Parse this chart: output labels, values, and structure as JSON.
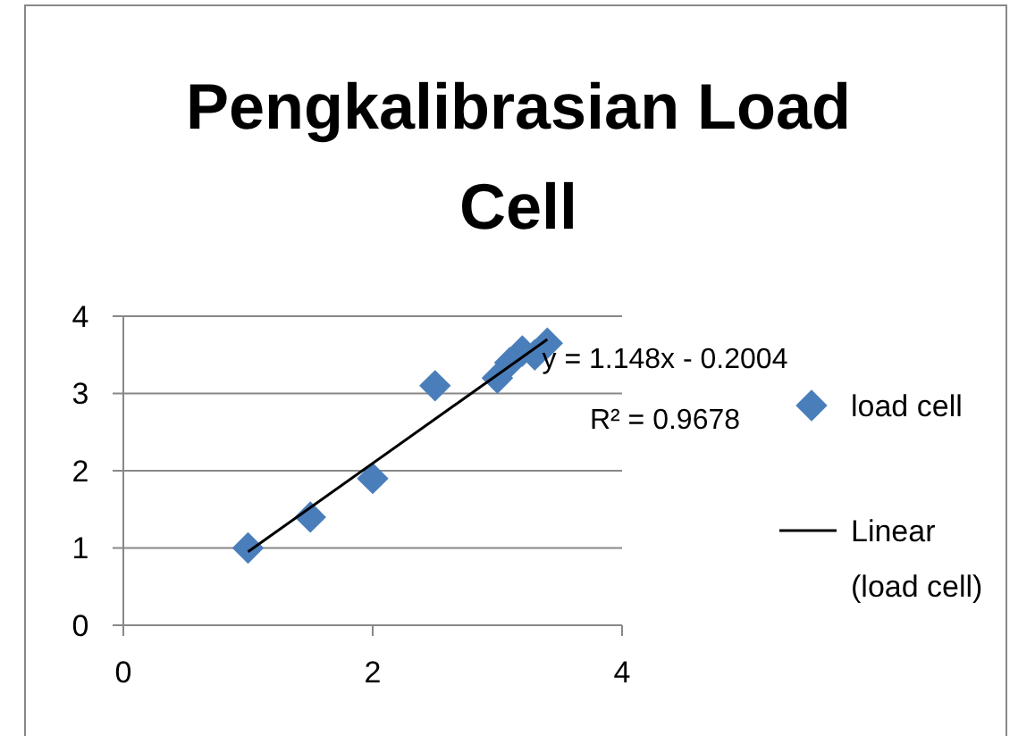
{
  "chart_data": {
    "type": "scatter",
    "title": "Pengkalibrasian Load Cell",
    "xlim": [
      0,
      4
    ],
    "xticks": [
      0,
      2,
      4
    ],
    "ylim": [
      0,
      4
    ],
    "yticks": [
      0,
      1,
      2,
      3,
      4
    ],
    "grid": "y",
    "legend": "right",
    "marker": "diamond",
    "series": [
      {
        "name": "load cell",
        "color": "#4a7ebb",
        "x": [
          1,
          1.5,
          2,
          2.5,
          3,
          3.1,
          3.2,
          3.3,
          3.4
        ],
        "values": [
          1,
          1.4,
          1.9,
          3.1,
          3.2,
          3.4,
          3.55,
          3.5,
          3.65
        ]
      },
      {
        "name": "Linear (load cell)",
        "type": "line",
        "marker": "none",
        "color": "#000000",
        "x": [
          1,
          3.4
        ],
        "values": [
          0.95,
          3.7
        ]
      }
    ],
    "annotations": [
      "y = 1.148x - 0.2004",
      "R² = 0.9678"
    ]
  }
}
